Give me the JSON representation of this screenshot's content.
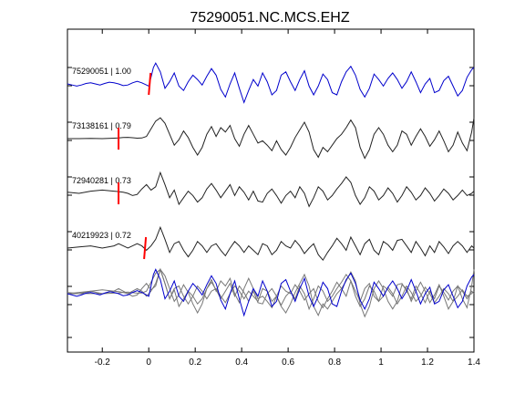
{
  "chart_data": {
    "type": "line",
    "title": "75290051.NC.MCS.EHZ",
    "xlabel": "",
    "ylabel": "",
    "xlim": [
      -0.35,
      1.4
    ],
    "x_ticks": [
      -0.2,
      0,
      0.2,
      0.4,
      0.6,
      0.8,
      1,
      1.2,
      1.4
    ],
    "x_tick_labels": [
      "-0.2",
      "0",
      "0.2",
      "0.4",
      "0.6",
      "0.8",
      "1",
      "1.2",
      "1.4"
    ],
    "grid": false,
    "colors": {
      "primary": "#0000cc",
      "secondary": "#222222",
      "stack_gray": "#777777",
      "pick": "#ff0000"
    },
    "traces": [
      {
        "label": "75290051 | 1.00",
        "pick_time": 0.0,
        "color": "#0000cc",
        "x": [
          -0.35,
          -0.33,
          -0.31,
          -0.29,
          -0.27,
          -0.25,
          -0.23,
          -0.21,
          -0.19,
          -0.17,
          -0.15,
          -0.13,
          -0.11,
          -0.09,
          -0.07,
          -0.05,
          -0.03,
          -0.01,
          0.0,
          0.01,
          0.02,
          0.03,
          0.05,
          0.07,
          0.09,
          0.11,
          0.13,
          0.15,
          0.17,
          0.19,
          0.21,
          0.23,
          0.25,
          0.27,
          0.29,
          0.31,
          0.33,
          0.35,
          0.37,
          0.39,
          0.41,
          0.43,
          0.45,
          0.47,
          0.49,
          0.51,
          0.53,
          0.55,
          0.57,
          0.59,
          0.61,
          0.63,
          0.65,
          0.67,
          0.69,
          0.71,
          0.73,
          0.75,
          0.77,
          0.79,
          0.81,
          0.83,
          0.85,
          0.87,
          0.89,
          0.91,
          0.93,
          0.95,
          0.97,
          0.99,
          1.01,
          1.03,
          1.05,
          1.07,
          1.09,
          1.11,
          1.13,
          1.15,
          1.17,
          1.19,
          1.21,
          1.23,
          1.25,
          1.27,
          1.29,
          1.31,
          1.33,
          1.35,
          1.37,
          1.39,
          1.4
        ],
        "y": [
          0.0,
          -0.05,
          -0.1,
          -0.05,
          0.02,
          0.05,
          0.0,
          -0.05,
          0.02,
          0.08,
          0.05,
          0.0,
          -0.08,
          -0.05,
          0.05,
          0.12,
          0.05,
          -0.05,
          -0.1,
          0.3,
          0.75,
          0.95,
          0.55,
          -0.2,
          0.1,
          0.5,
          -0.1,
          -0.3,
          0.1,
          0.4,
          0.2,
          -0.05,
          0.35,
          0.7,
          0.4,
          -0.25,
          -0.6,
          0.0,
          0.5,
          -0.2,
          -0.85,
          -0.3,
          0.2,
          -0.1,
          0.5,
          0.1,
          -0.5,
          -0.3,
          0.4,
          0.55,
          0.1,
          -0.3,
          0.2,
          0.6,
          -0.1,
          -0.5,
          -0.1,
          0.45,
          0.2,
          -0.4,
          -0.5,
          0.1,
          0.55,
          0.8,
          0.4,
          -0.25,
          -0.6,
          -0.2,
          0.45,
          0.2,
          -0.1,
          0.25,
          0.5,
          0.2,
          -0.2,
          0.1,
          0.55,
          0.1,
          -0.4,
          0.0,
          0.25,
          -0.4,
          -0.3,
          0.15,
          0.35,
          -0.1,
          -0.55,
          -0.3,
          0.3,
          0.65,
          0.75
        ]
      },
      {
        "label": "73138161 | 0.79",
        "pick_time": -0.13,
        "color": "#222222",
        "x": [
          -0.35,
          -0.3,
          -0.25,
          -0.2,
          -0.15,
          -0.13,
          -0.11,
          -0.09,
          -0.07,
          -0.05,
          -0.03,
          -0.01,
          0.01,
          0.03,
          0.05,
          0.07,
          0.09,
          0.11,
          0.13,
          0.15,
          0.17,
          0.19,
          0.21,
          0.23,
          0.25,
          0.27,
          0.29,
          0.31,
          0.33,
          0.35,
          0.37,
          0.39,
          0.41,
          0.43,
          0.45,
          0.47,
          0.49,
          0.51,
          0.53,
          0.55,
          0.57,
          0.59,
          0.61,
          0.63,
          0.65,
          0.67,
          0.69,
          0.71,
          0.73,
          0.75,
          0.77,
          0.79,
          0.81,
          0.83,
          0.85,
          0.87,
          0.89,
          0.91,
          0.93,
          0.95,
          0.97,
          0.99,
          1.01,
          1.03,
          1.05,
          1.07,
          1.09,
          1.11,
          1.13,
          1.15,
          1.17,
          1.19,
          1.21,
          1.23,
          1.25,
          1.27,
          1.29,
          1.31,
          1.33,
          1.35,
          1.37,
          1.39,
          1.4
        ],
        "y": [
          0.0,
          0.0,
          0.01,
          0.0,
          0.02,
          0.03,
          0.05,
          0.06,
          0.04,
          0.02,
          0.03,
          0.1,
          0.45,
          0.8,
          0.95,
          0.7,
          0.2,
          -0.3,
          -0.05,
          0.35,
          0.05,
          -0.4,
          -0.75,
          -0.4,
          0.2,
          0.55,
          0.1,
          0.5,
          0.3,
          0.6,
          0.0,
          -0.35,
          0.2,
          0.6,
          0.2,
          -0.2,
          -0.1,
          -0.3,
          -0.55,
          -0.1,
          -0.5,
          -0.75,
          -0.4,
          0.05,
          0.4,
          0.75,
          0.3,
          -0.5,
          -0.85,
          -0.4,
          -0.6,
          -0.3,
          0.0,
          0.2,
          0.5,
          0.85,
          0.5,
          -0.4,
          -0.9,
          -0.5,
          0.2,
          0.5,
          0.2,
          -0.3,
          -0.6,
          -0.3,
          0.35,
          0.2,
          -0.3,
          0.1,
          0.45,
          0.1,
          -0.35,
          -0.05,
          0.35,
          -0.1,
          -0.6,
          -0.3,
          0.3,
          -0.2,
          -0.55,
          0.3,
          0.95
        ]
      },
      {
        "label": "72940281 | 0.73",
        "pick_time": -0.13,
        "color": "#222222",
        "x": [
          -0.35,
          -0.3,
          -0.25,
          -0.2,
          -0.15,
          -0.13,
          -0.11,
          -0.09,
          -0.07,
          -0.05,
          -0.03,
          -0.01,
          0.01,
          0.03,
          0.05,
          0.07,
          0.09,
          0.11,
          0.13,
          0.15,
          0.17,
          0.19,
          0.21,
          0.23,
          0.25,
          0.27,
          0.29,
          0.31,
          0.33,
          0.35,
          0.37,
          0.39,
          0.41,
          0.43,
          0.45,
          0.47,
          0.49,
          0.51,
          0.53,
          0.55,
          0.57,
          0.59,
          0.61,
          0.63,
          0.65,
          0.67,
          0.69,
          0.71,
          0.73,
          0.75,
          0.77,
          0.79,
          0.81,
          0.83,
          0.85,
          0.87,
          0.89,
          0.91,
          0.93,
          0.95,
          0.97,
          0.99,
          1.01,
          1.03,
          1.05,
          1.07,
          1.09,
          1.11,
          1.13,
          1.15,
          1.17,
          1.19,
          1.21,
          1.23,
          1.25,
          1.27,
          1.29,
          1.31,
          1.33,
          1.35,
          1.37,
          1.39,
          1.4
        ],
        "y": [
          0.05,
          0.0,
          0.1,
          0.15,
          0.1,
          0.08,
          0.05,
          0.0,
          -0.1,
          -0.05,
          0.2,
          0.4,
          0.15,
          0.3,
          0.95,
          0.4,
          -0.2,
          0.15,
          -0.5,
          -0.2,
          0.1,
          -0.1,
          -0.4,
          -0.2,
          0.2,
          0.45,
          0.15,
          -0.2,
          0.1,
          0.4,
          -0.1,
          0.3,
          0.05,
          -0.3,
          0.1,
          -0.35,
          -0.4,
          0.0,
          0.2,
          -0.1,
          -0.45,
          -0.1,
          0.1,
          -0.2,
          0.3,
          0.0,
          -0.6,
          -0.2,
          0.3,
          0.1,
          -0.3,
          -0.1,
          0.2,
          0.45,
          0.75,
          0.5,
          -0.1,
          -0.5,
          -0.2,
          0.3,
          0.1,
          -0.3,
          -0.1,
          0.25,
          0.0,
          -0.4,
          -0.1,
          0.3,
          0.05,
          -0.3,
          -0.1,
          0.25,
          0.0,
          -0.35,
          -0.1,
          0.2,
          0.0,
          -0.3,
          -0.1,
          0.15,
          -0.1,
          0.0,
          0.1
        ]
      },
      {
        "label": "40219923 | 0.72",
        "pick_time": -0.02,
        "color": "#222222",
        "x": [
          -0.35,
          -0.3,
          -0.25,
          -0.2,
          -0.15,
          -0.13,
          -0.11,
          -0.09,
          -0.07,
          -0.05,
          -0.03,
          -0.01,
          0.01,
          0.03,
          0.05,
          0.07,
          0.09,
          0.11,
          0.13,
          0.15,
          0.17,
          0.19,
          0.21,
          0.23,
          0.25,
          0.27,
          0.29,
          0.31,
          0.33,
          0.35,
          0.37,
          0.39,
          0.41,
          0.43,
          0.45,
          0.47,
          0.49,
          0.51,
          0.53,
          0.55,
          0.57,
          0.59,
          0.61,
          0.63,
          0.65,
          0.67,
          0.69,
          0.71,
          0.73,
          0.75,
          0.77,
          0.79,
          0.81,
          0.83,
          0.85,
          0.87,
          0.89,
          0.91,
          0.93,
          0.95,
          0.97,
          0.99,
          1.01,
          1.03,
          1.05,
          1.07,
          1.09,
          1.11,
          1.13,
          1.15,
          1.17,
          1.19,
          1.21,
          1.23,
          1.25,
          1.27,
          1.29,
          1.31,
          1.33,
          1.35,
          1.37,
          1.39,
          1.4
        ],
        "y": [
          0.0,
          0.05,
          0.1,
          0.0,
          0.1,
          0.2,
          0.1,
          0.0,
          0.1,
          0.2,
          0.1,
          -0.1,
          0.1,
          0.4,
          0.95,
          0.4,
          -0.2,
          0.2,
          0.3,
          -0.1,
          -0.4,
          -0.1,
          0.3,
          0.1,
          -0.2,
          0.1,
          0.2,
          -0.1,
          -0.35,
          0.0,
          0.3,
          0.1,
          -0.2,
          0.1,
          -0.1,
          -0.3,
          0.2,
          0.1,
          -0.3,
          -0.1,
          0.3,
          0.1,
          0.0,
          0.35,
          0.1,
          -0.25,
          0.0,
          0.2,
          -0.3,
          -0.55,
          -0.2,
          0.1,
          0.45,
          0.2,
          -0.1,
          0.5,
          0.1,
          -0.3,
          0.2,
          0.4,
          -0.1,
          -0.3,
          0.3,
          0.15,
          -0.1,
          0.35,
          0.4,
          0.1,
          -0.2,
          0.3,
          0.0,
          -0.35,
          0.1,
          -0.2,
          0.3,
          0.05,
          -0.25,
          0.1,
          0.3,
          0.1,
          -0.2,
          0.1,
          0.0
        ]
      }
    ]
  }
}
